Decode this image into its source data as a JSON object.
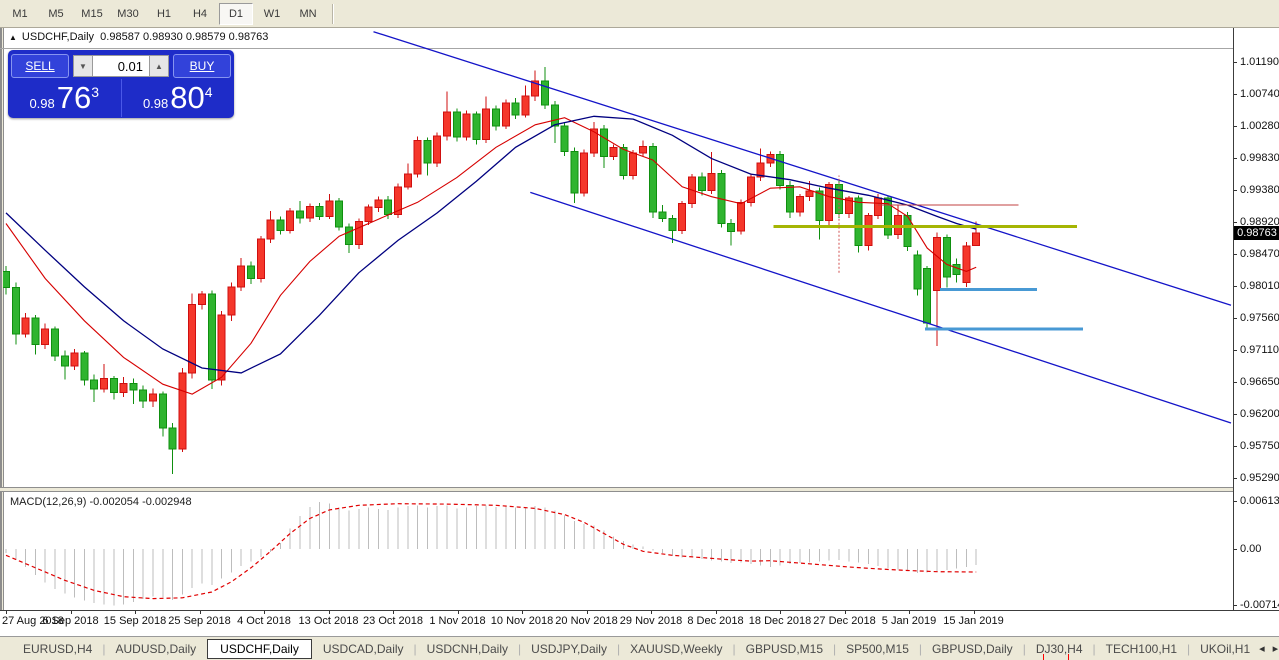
{
  "toolbar": {
    "timeframes": [
      {
        "label": "M1",
        "selected": false
      },
      {
        "label": "M5",
        "selected": false
      },
      {
        "label": "M15",
        "selected": false
      },
      {
        "label": "M30",
        "selected": false
      },
      {
        "label": "H1",
        "selected": false
      },
      {
        "label": "H4",
        "selected": false
      },
      {
        "label": "D1",
        "selected": true
      },
      {
        "label": "W1",
        "selected": false
      },
      {
        "label": "MN",
        "selected": false
      }
    ]
  },
  "chart_header": {
    "triangle_icon": "▲",
    "symbol": "USDCHF,Daily",
    "open": "0.98587",
    "high": "0.98930",
    "low": "0.98579",
    "close": "0.98763"
  },
  "one_click": {
    "sell_label": "SELL",
    "buy_label": "BUY",
    "volume": "0.01",
    "spin_down_icon": "▼",
    "spin_up_icon": "▲",
    "sell_price": {
      "prefix": "0.98",
      "big": "76",
      "sup": "3"
    },
    "buy_price": {
      "prefix": "0.98",
      "big": "80",
      "sup": "4"
    }
  },
  "price_axis": {
    "ticks": [
      "1.01190",
      "1.00740",
      "1.00280",
      "0.99830",
      "0.99380",
      "0.98920",
      "0.98470",
      "0.98010",
      "0.97560",
      "0.97110",
      "0.96650",
      "0.96200",
      "0.95750",
      "0.95290"
    ],
    "current": "0.98763",
    "current_price": 0.98763
  },
  "macd_panel": {
    "label": "MACD(12,26,9)",
    "value1": "-0.002054",
    "value2": "-0.002948",
    "axis": [
      {
        "text": "0.006137",
        "value": 0.006137
      },
      {
        "text": "0.00",
        "value": 0
      },
      {
        "text": "-0.007142",
        "value": -0.007142
      }
    ]
  },
  "date_axis": {
    "labels": [
      "27 Aug 2018",
      "6 Sep 2018",
      "15 Sep 2018",
      "25 Sep 2018",
      "4 Oct 2018",
      "13 Oct 2018",
      "23 Oct 2018",
      "1 Nov 2018",
      "10 Nov 2018",
      "20 Nov 2018",
      "29 Nov 2018",
      "8 Dec 2018",
      "18 Dec 2018",
      "27 Dec 2018",
      "5 Jan 2019",
      "15 Jan 2019"
    ]
  },
  "tabs": {
    "items": [
      {
        "label": "EURUSD,H4",
        "active": false,
        "marker": false
      },
      {
        "label": "AUDUSD,Daily",
        "active": false,
        "marker": false
      },
      {
        "label": "USDCHF,Daily",
        "active": true,
        "marker": false
      },
      {
        "label": "USDCAD,Daily",
        "active": false,
        "marker": false
      },
      {
        "label": "USDCNH,Daily",
        "active": false,
        "marker": false
      },
      {
        "label": "USDJPY,Daily",
        "active": false,
        "marker": false
      },
      {
        "label": "XAUUSD,Weekly",
        "active": false,
        "marker": false
      },
      {
        "label": "GBPUSD,M15",
        "active": false,
        "marker": false
      },
      {
        "label": "SP500,M15",
        "active": false,
        "marker": false
      },
      {
        "label": "GBPUSD,Daily",
        "active": false,
        "marker": false
      },
      {
        "label": "DJ30,H4",
        "active": false,
        "marker": true
      },
      {
        "label": "TECH100,H1",
        "active": false,
        "marker": false
      },
      {
        "label": "UKOil,H1",
        "active": false,
        "marker": false
      }
    ],
    "scroll_left_icon": "◂",
    "scroll_right_icon": "▸"
  },
  "chart_data": {
    "type": "candlestick",
    "symbol": "USDCHF",
    "timeframe": "Daily",
    "ylim": [
      0.9516,
      1.0167
    ],
    "macd_ylim": [
      -0.007142,
      0.006137
    ],
    "colors": {
      "bull_fill": "#f5372b",
      "bull_stroke": "#cf0f0f",
      "bear_fill": "#2fb42f",
      "bear_stroke": "#0f8f0f",
      "ma_fast": "#d60000",
      "ma_slow": "#000080",
      "trendline": "#1414c8",
      "olive_line": "#a5b503",
      "lightblue_line": "#4899d4",
      "darkred_line": "#c04040",
      "macd_hist": "#bdbdbd",
      "macd_signal": "#e00000",
      "background": "#ffffff"
    },
    "candles": [
      [
        0.9822,
        0.983,
        0.9789,
        0.9799
      ],
      [
        0.9799,
        0.9806,
        0.9718,
        0.9733
      ],
      [
        0.9733,
        0.9763,
        0.9728,
        0.9756
      ],
      [
        0.9756,
        0.976,
        0.9704,
        0.9718
      ],
      [
        0.9718,
        0.9748,
        0.9712,
        0.974
      ],
      [
        0.974,
        0.9744,
        0.9695,
        0.9702
      ],
      [
        0.9702,
        0.971,
        0.9669,
        0.9688
      ],
      [
        0.9688,
        0.9712,
        0.9682,
        0.9706
      ],
      [
        0.9706,
        0.9709,
        0.966,
        0.9668
      ],
      [
        0.9668,
        0.9676,
        0.9637,
        0.9655
      ],
      [
        0.9655,
        0.9691,
        0.965,
        0.967
      ],
      [
        0.967,
        0.9674,
        0.964,
        0.965
      ],
      [
        0.965,
        0.9672,
        0.9644,
        0.9663
      ],
      [
        0.9663,
        0.967,
        0.9634,
        0.9654
      ],
      [
        0.9654,
        0.966,
        0.9628,
        0.9638
      ],
      [
        0.9638,
        0.9656,
        0.963,
        0.9648
      ],
      [
        0.9648,
        0.9652,
        0.9588,
        0.96
      ],
      [
        0.96,
        0.9607,
        0.9535,
        0.957
      ],
      [
        0.957,
        0.9685,
        0.9566,
        0.9678
      ],
      [
        0.9678,
        0.9791,
        0.967,
        0.9775
      ],
      [
        0.9775,
        0.9794,
        0.9768,
        0.979
      ],
      [
        0.979,
        0.9795,
        0.9655,
        0.9668
      ],
      [
        0.9668,
        0.9766,
        0.966,
        0.976
      ],
      [
        0.976,
        0.9806,
        0.9752,
        0.98
      ],
      [
        0.98,
        0.9841,
        0.9794,
        0.983
      ],
      [
        0.983,
        0.9836,
        0.9804,
        0.9812
      ],
      [
        0.9812,
        0.9872,
        0.9806,
        0.9868
      ],
      [
        0.9868,
        0.9908,
        0.9862,
        0.9895
      ],
      [
        0.9895,
        0.99,
        0.9874,
        0.988
      ],
      [
        0.988,
        0.9912,
        0.9876,
        0.9908
      ],
      [
        0.9908,
        0.9922,
        0.989,
        0.9898
      ],
      [
        0.9898,
        0.9918,
        0.9892,
        0.9914
      ],
      [
        0.9914,
        0.9919,
        0.9895,
        0.99
      ],
      [
        0.99,
        0.9932,
        0.9896,
        0.9922
      ],
      [
        0.9922,
        0.9926,
        0.988,
        0.9885
      ],
      [
        0.9885,
        0.989,
        0.9848,
        0.986
      ],
      [
        0.986,
        0.9897,
        0.9854,
        0.9893
      ],
      [
        0.9893,
        0.9917,
        0.9888,
        0.9913
      ],
      [
        0.9913,
        0.9928,
        0.9906,
        0.9923
      ],
      [
        0.9923,
        0.9929,
        0.9896,
        0.9903
      ],
      [
        0.9903,
        0.9947,
        0.9898,
        0.9942
      ],
      [
        0.9942,
        0.9975,
        0.9938,
        0.996
      ],
      [
        0.996,
        1.0013,
        0.9955,
        1.0008
      ],
      [
        1.0008,
        1.0012,
        0.9958,
        0.9976
      ],
      [
        0.9976,
        1.0019,
        0.997,
        1.0014
      ],
      [
        1.0014,
        1.0077,
        1.0008,
        1.0048
      ],
      [
        1.0048,
        1.0053,
        1.0006,
        1.0013
      ],
      [
        1.0013,
        1.005,
        1.0008,
        1.0045
      ],
      [
        1.0045,
        1.0049,
        1.0002,
        1.0009
      ],
      [
        1.0009,
        1.007,
        1.0004,
        1.0052
      ],
      [
        1.0052,
        1.0057,
        1.0022,
        1.0028
      ],
      [
        1.0028,
        1.0066,
        1.0024,
        1.0061
      ],
      [
        1.0061,
        1.0068,
        1.0038,
        1.0044
      ],
      [
        1.0044,
        1.0086,
        1.004,
        1.0071
      ],
      [
        1.0071,
        1.0107,
        1.0064,
        1.0092
      ],
      [
        1.0092,
        1.0112,
        1.0052,
        1.0058
      ],
      [
        1.0058,
        1.0064,
        1.0004,
        1.0028
      ],
      [
        1.0028,
        1.0034,
        0.9986,
        0.9992
      ],
      [
        0.9992,
        0.9998,
        0.9919,
        0.9933
      ],
      [
        0.9933,
        0.9995,
        0.9928,
        0.999
      ],
      [
        0.999,
        1.0034,
        0.9984,
        1.0024
      ],
      [
        1.0024,
        1.003,
        0.9969,
        0.9985
      ],
      [
        0.9985,
        1.0002,
        0.998,
        0.9998
      ],
      [
        0.9998,
        1.0003,
        0.9952,
        0.9958
      ],
      [
        0.9958,
        0.9994,
        0.9952,
        0.999
      ],
      [
        0.999,
        1.0008,
        0.9985,
        0.9999
      ],
      [
        0.9999,
        1.0004,
        0.9898,
        0.9906
      ],
      [
        0.9906,
        0.9916,
        0.9892,
        0.9897
      ],
      [
        0.9897,
        0.9902,
        0.9862,
        0.988
      ],
      [
        0.988,
        0.9922,
        0.9875,
        0.9918
      ],
      [
        0.9918,
        0.996,
        0.9912,
        0.9956
      ],
      [
        0.9956,
        0.9962,
        0.993,
        0.9937
      ],
      [
        0.9937,
        0.9991,
        0.9932,
        0.9961
      ],
      [
        0.9961,
        0.9966,
        0.9884,
        0.989
      ],
      [
        0.989,
        0.9896,
        0.9859,
        0.9879
      ],
      [
        0.9879,
        0.9924,
        0.9874,
        0.992
      ],
      [
        0.992,
        0.9961,
        0.9914,
        0.9956
      ],
      [
        0.9956,
        0.9996,
        0.995,
        0.9976
      ],
      [
        0.9976,
        0.9992,
        0.997,
        0.9988
      ],
      [
        0.9988,
        0.9993,
        0.9938,
        0.9944
      ],
      [
        0.9944,
        0.995,
        0.9898,
        0.9906
      ],
      [
        0.9906,
        0.9932,
        0.99,
        0.9928
      ],
      [
        0.9928,
        0.995,
        0.9922,
        0.9936
      ],
      [
        0.9936,
        0.9941,
        0.9867,
        0.9894
      ],
      [
        0.9894,
        0.9949,
        0.9888,
        0.9945
      ],
      [
        0.9945,
        0.995,
        0.9898,
        0.9904
      ],
      [
        0.9904,
        0.9929,
        0.9898,
        0.9926
      ],
      [
        0.9926,
        0.993,
        0.9849,
        0.9859
      ],
      [
        0.9859,
        0.9905,
        0.9852,
        0.9901
      ],
      [
        0.9901,
        0.9932,
        0.9896,
        0.9926
      ],
      [
        0.9926,
        0.993,
        0.9868,
        0.9874
      ],
      [
        0.9874,
        0.9916,
        0.9868,
        0.9901
      ],
      [
        0.9901,
        0.9906,
        0.9851,
        0.9857
      ],
      [
        0.9845,
        0.9852,
        0.9788,
        0.9797
      ],
      [
        0.9826,
        0.983,
        0.9738,
        0.9749
      ],
      [
        0.9795,
        0.9877,
        0.9716,
        0.987
      ],
      [
        0.987,
        0.9874,
        0.9799,
        0.9814
      ],
      [
        0.9832,
        0.984,
        0.9806,
        0.9818
      ],
      [
        0.9806,
        0.9864,
        0.98,
        0.9858
      ],
      [
        0.98587,
        0.9893,
        0.98579,
        0.98763
      ]
    ],
    "ma_fast": [
      [
        0,
        0.989
      ],
      [
        4,
        0.9812
      ],
      [
        8,
        0.9752
      ],
      [
        12,
        0.97
      ],
      [
        16,
        0.9662
      ],
      [
        19,
        0.9648
      ],
      [
        22,
        0.9672
      ],
      [
        25,
        0.972
      ],
      [
        28,
        0.9788
      ],
      [
        31,
        0.9836
      ],
      [
        34,
        0.9872
      ],
      [
        38,
        0.9896
      ],
      [
        42,
        0.992
      ],
      [
        46,
        0.9955
      ],
      [
        50,
        0.9998
      ],
      [
        54,
        1.003
      ],
      [
        57,
        1.004
      ],
      [
        60,
        1.002
      ],
      [
        63,
        0.9995
      ],
      [
        66,
        0.998
      ],
      [
        69,
        0.9942
      ],
      [
        72,
        0.9928
      ],
      [
        75,
        0.9918
      ],
      [
        78,
        0.994
      ],
      [
        81,
        0.9942
      ],
      [
        84,
        0.9928
      ],
      [
        87,
        0.992
      ],
      [
        90,
        0.9918
      ],
      [
        92,
        0.99
      ],
      [
        94,
        0.9855
      ],
      [
        96,
        0.9832
      ],
      [
        98,
        0.9822
      ],
      [
        99,
        0.9828
      ]
    ],
    "ma_slow": [
      [
        0,
        0.9905
      ],
      [
        4,
        0.9852
      ],
      [
        8,
        0.98
      ],
      [
        12,
        0.9752
      ],
      [
        16,
        0.9712
      ],
      [
        20,
        0.9685
      ],
      [
        24,
        0.9678
      ],
      [
        28,
        0.9705
      ],
      [
        32,
        0.976
      ],
      [
        36,
        0.982
      ],
      [
        40,
        0.9866
      ],
      [
        44,
        0.9905
      ],
      [
        48,
        0.995
      ],
      [
        52,
        0.9998
      ],
      [
        56,
        1.003
      ],
      [
        60,
        1.0042
      ],
      [
        64,
        1.0038
      ],
      [
        68,
        1.0015
      ],
      [
        72,
        0.9982
      ],
      [
        76,
        0.996
      ],
      [
        80,
        0.9952
      ],
      [
        84,
        0.994
      ],
      [
        88,
        0.993
      ],
      [
        92,
        0.9916
      ],
      [
        95,
        0.99
      ],
      [
        97,
        0.989
      ],
      [
        99,
        0.9882
      ]
    ],
    "trendlines": [
      {
        "i1": 37.5,
        "p1": 1.0162,
        "i2": 125,
        "p2": 0.9774
      },
      {
        "i1": 53.5,
        "p1": 0.9934,
        "i2": 125,
        "p2": 0.9607
      }
    ],
    "hlines": [
      {
        "price": 0.9916,
        "i1": 89,
        "i2": 103.3,
        "color": "#c04040",
        "width": 1
      },
      {
        "price": 0.9886,
        "i1": 78.3,
        "i2": 109.3,
        "color": "#a5b503",
        "width": 3
      },
      {
        "price": 0.9796,
        "i1": 95.3,
        "i2": 105.2,
        "color": "#4899d4",
        "width": 3
      },
      {
        "price": 0.974,
        "i1": 93.8,
        "i2": 109.9,
        "color": "#4899d4",
        "width": 3
      }
    ],
    "vlines": [
      {
        "i": 85,
        "p1": 0.982,
        "p2": 0.9958,
        "color": "#d05050"
      }
    ],
    "macd_hist": [
      -0.0005,
      -0.0014,
      -0.0023,
      -0.0033,
      -0.0043,
      -0.0051,
      -0.0057,
      -0.0062,
      -0.0066,
      -0.0069,
      -0.0071,
      -0.0072,
      -0.0071,
      -0.0068,
      -0.0064,
      -0.0061,
      -0.0062,
      -0.0065,
      -0.0058,
      -0.005,
      -0.0044,
      -0.0046,
      -0.0038,
      -0.003,
      -0.0022,
      -0.0016,
      -0.001,
      -0.0004,
      0.0008,
      0.0026,
      0.0042,
      0.0054,
      0.006,
      0.0058,
      0.0053,
      0.0049,
      0.0051,
      0.0053,
      0.0051,
      0.005,
      0.0053,
      0.0055,
      0.0056,
      0.0053,
      0.0055,
      0.0056,
      0.0052,
      0.0053,
      0.0055,
      0.0056,
      0.0054,
      0.0055,
      0.0053,
      0.0054,
      0.0055,
      0.0053,
      0.0049,
      0.0043,
      0.0036,
      0.0032,
      0.003,
      0.0024,
      0.0016,
      0.001,
      0.0006,
      0.0003,
      -0.0002,
      -0.0005,
      -0.0009,
      -0.0011,
      -0.001,
      -0.0013,
      -0.0015,
      -0.0016,
      -0.0018,
      -0.0017,
      -0.0019,
      -0.0021,
      -0.0023,
      -0.0021,
      -0.0019,
      -0.0018,
      -0.0017,
      -0.0016,
      -0.0015,
      -0.0014,
      -0.0016,
      -0.0017,
      -0.0019,
      -0.0022,
      -0.0024,
      -0.0026,
      -0.0028,
      -0.0031,
      -0.003,
      -0.0028,
      -0.0027,
      -0.0025,
      -0.0023,
      -0.002054
    ],
    "macd_signal": [
      [
        0,
        -0.0008
      ],
      [
        3,
        -0.0024
      ],
      [
        6,
        -0.004
      ],
      [
        9,
        -0.0053
      ],
      [
        12,
        -0.0061
      ],
      [
        15,
        -0.00635
      ],
      [
        18,
        -0.00625
      ],
      [
        21,
        -0.0055
      ],
      [
        23,
        -0.0042
      ],
      [
        25,
        -0.0024
      ],
      [
        27,
        -0.0003
      ],
      [
        29,
        0.002
      ],
      [
        31,
        0.0039
      ],
      [
        33,
        0.005
      ],
      [
        36,
        0.0056
      ],
      [
        40,
        0.0058
      ],
      [
        45,
        0.00575
      ],
      [
        50,
        0.0056
      ],
      [
        54,
        0.0052
      ],
      [
        57,
        0.0044
      ],
      [
        59,
        0.0034
      ],
      [
        61,
        0.002
      ],
      [
        63,
        0.0006
      ],
      [
        65,
        -0.0003
      ],
      [
        68,
        -0.0008
      ],
      [
        71,
        -0.0011
      ],
      [
        74,
        -0.0014
      ],
      [
        76,
        -0.00155
      ],
      [
        78,
        -0.0015
      ],
      [
        80,
        -0.0017
      ],
      [
        83,
        -0.002
      ],
      [
        86,
        -0.0023
      ],
      [
        89,
        -0.00255
      ],
      [
        92,
        -0.00275
      ],
      [
        95,
        -0.0029
      ],
      [
        99,
        -0.002948
      ]
    ]
  }
}
